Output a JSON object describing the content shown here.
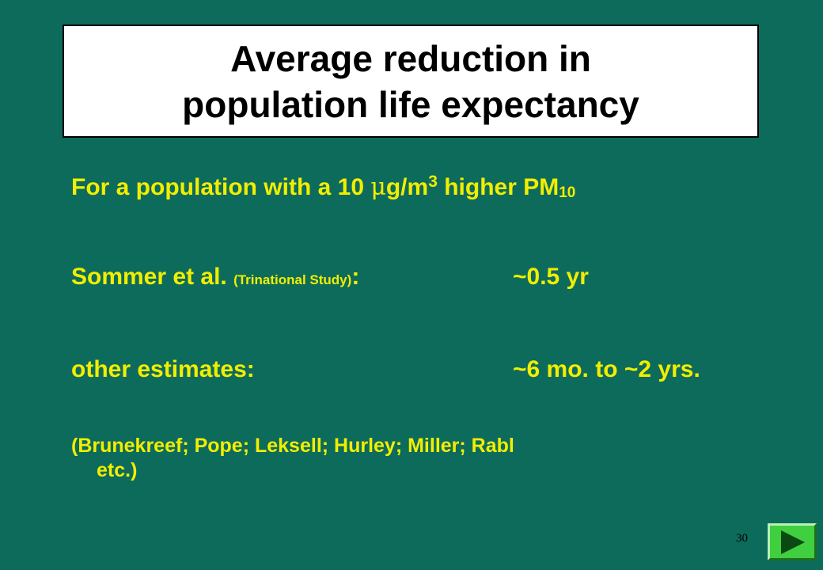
{
  "slide": {
    "title_line1": "Average reduction in",
    "title_line2": "population life expectancy",
    "intro": {
      "prefix": "For a population with a 10 ",
      "mu": "μ",
      "unit": "g/m",
      "unit_sup": "3",
      "suffix": " higher PM",
      "pm_sub": "10"
    },
    "study": {
      "label": "Sommer et al. ",
      "detail": "(Trinational Study)",
      "colon": ":",
      "value": "~0.5 yr"
    },
    "other": {
      "label": "other estimates:",
      "value": "~6 mo. to ~2 yrs."
    },
    "references": {
      "line1": "(Brunekreef;  Pope; Leksell; Hurley; Miller; Rabl",
      "line2": "etc.)"
    },
    "page_number": "30",
    "nav": {
      "icon": "play-right-icon"
    }
  },
  "colors": {
    "background": "#0d6b5c",
    "text": "#f2ee00",
    "title_bg": "#ffffff",
    "button": "#3fcf3f"
  }
}
